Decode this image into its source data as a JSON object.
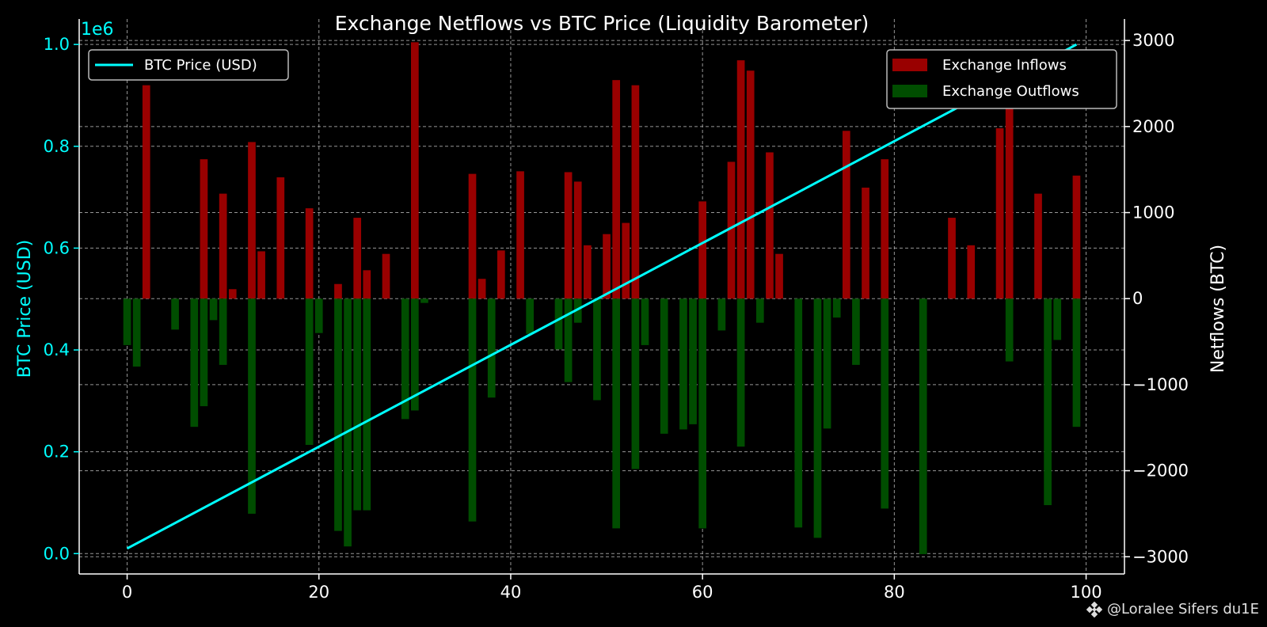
{
  "chart_data": {
    "type": "bar",
    "title": "Exchange Netflows vs BTC Price (Liquidity Barometer)",
    "xlabel": "",
    "ylabel_left": "BTC Price (USD)",
    "ylabel_right": "Netflows (BTC)",
    "left_offset_label": "1e6",
    "xlim": [
      -5,
      104
    ],
    "ylim_left": [
      -0.04,
      1.05
    ],
    "ylim_right": [
      -3200,
      3250
    ],
    "x_ticks": [
      0,
      20,
      40,
      60,
      80,
      100
    ],
    "x_tick_labels": [
      "0",
      "20",
      "40",
      "60",
      "80",
      "100"
    ],
    "left_ticks": [
      0.0,
      0.2,
      0.4,
      0.6,
      0.8,
      1.0
    ],
    "left_tick_labels": [
      "0.0",
      "0.2",
      "0.4",
      "0.6",
      "0.8",
      "1.0"
    ],
    "right_ticks": [
      -3000,
      -2000,
      -1000,
      0,
      1000,
      2000,
      3000
    ],
    "right_tick_labels": [
      "−3000",
      "−2000",
      "−1000",
      "0",
      "1000",
      "2000",
      "3000"
    ],
    "grid": true,
    "series": [
      {
        "name": "BTC Price (USD)",
        "type": "line",
        "axis": "left",
        "color": "#00ffff",
        "x": [
          0,
          99
        ],
        "values": [
          0.01,
          1.0
        ]
      },
      {
        "name": "Exchange Inflows",
        "type": "bar",
        "axis": "right",
        "color": "#990000",
        "x": [
          2,
          8,
          10,
          11,
          13,
          14,
          16,
          19,
          22,
          24,
          25,
          27,
          30,
          36,
          37,
          39,
          41,
          46,
          47,
          48,
          50,
          51,
          52,
          53,
          60,
          63,
          64,
          65,
          67,
          68,
          75,
          77,
          79,
          86,
          88,
          91,
          92,
          95,
          99
        ],
        "values": [
          2480,
          1620,
          1220,
          110,
          1820,
          550,
          1410,
          1050,
          170,
          940,
          330,
          520,
          2980,
          1450,
          230,
          560,
          1480,
          1470,
          1360,
          620,
          750,
          2540,
          880,
          2480,
          1130,
          1590,
          2770,
          2650,
          1700,
          520,
          1950,
          1290,
          1620,
          940,
          620,
          1980,
          2320,
          1220,
          1430
        ]
      },
      {
        "name": "Exchange Outflows",
        "type": "bar",
        "axis": "right",
        "color": "#004d00",
        "x": [
          0,
          1,
          5,
          7,
          8,
          9,
          10,
          13,
          19,
          20,
          22,
          23,
          24,
          25,
          29,
          30,
          31,
          36,
          38,
          42,
          45,
          46,
          47,
          49,
          51,
          53,
          54,
          56,
          58,
          59,
          60,
          62,
          64,
          66,
          70,
          72,
          73,
          74,
          76,
          79,
          83,
          92,
          96,
          97,
          99
        ],
        "values": [
          -540,
          -790,
          -360,
          -1490,
          -1250,
          -250,
          -770,
          -2500,
          -1700,
          -400,
          -2700,
          -2880,
          -2460,
          -2460,
          -1400,
          -1300,
          -50,
          -2590,
          -1150,
          -410,
          -590,
          -970,
          -280,
          -1180,
          -2670,
          -1980,
          -540,
          -1570,
          -1520,
          -1460,
          -2670,
          -370,
          -1720,
          -280,
          -2660,
          -2780,
          -1510,
          -220,
          -770,
          -2440,
          -2970,
          -730,
          -2400,
          -480,
          -1490
        ]
      }
    ]
  },
  "legend": {
    "left_label": "BTC Price (USD)",
    "inflow_label": "Exchange Inflows",
    "outflow_label": "Exchange Outflows"
  },
  "watermark": {
    "text": "@Loralee Sifers du1E",
    "icon": "binance-icon"
  }
}
